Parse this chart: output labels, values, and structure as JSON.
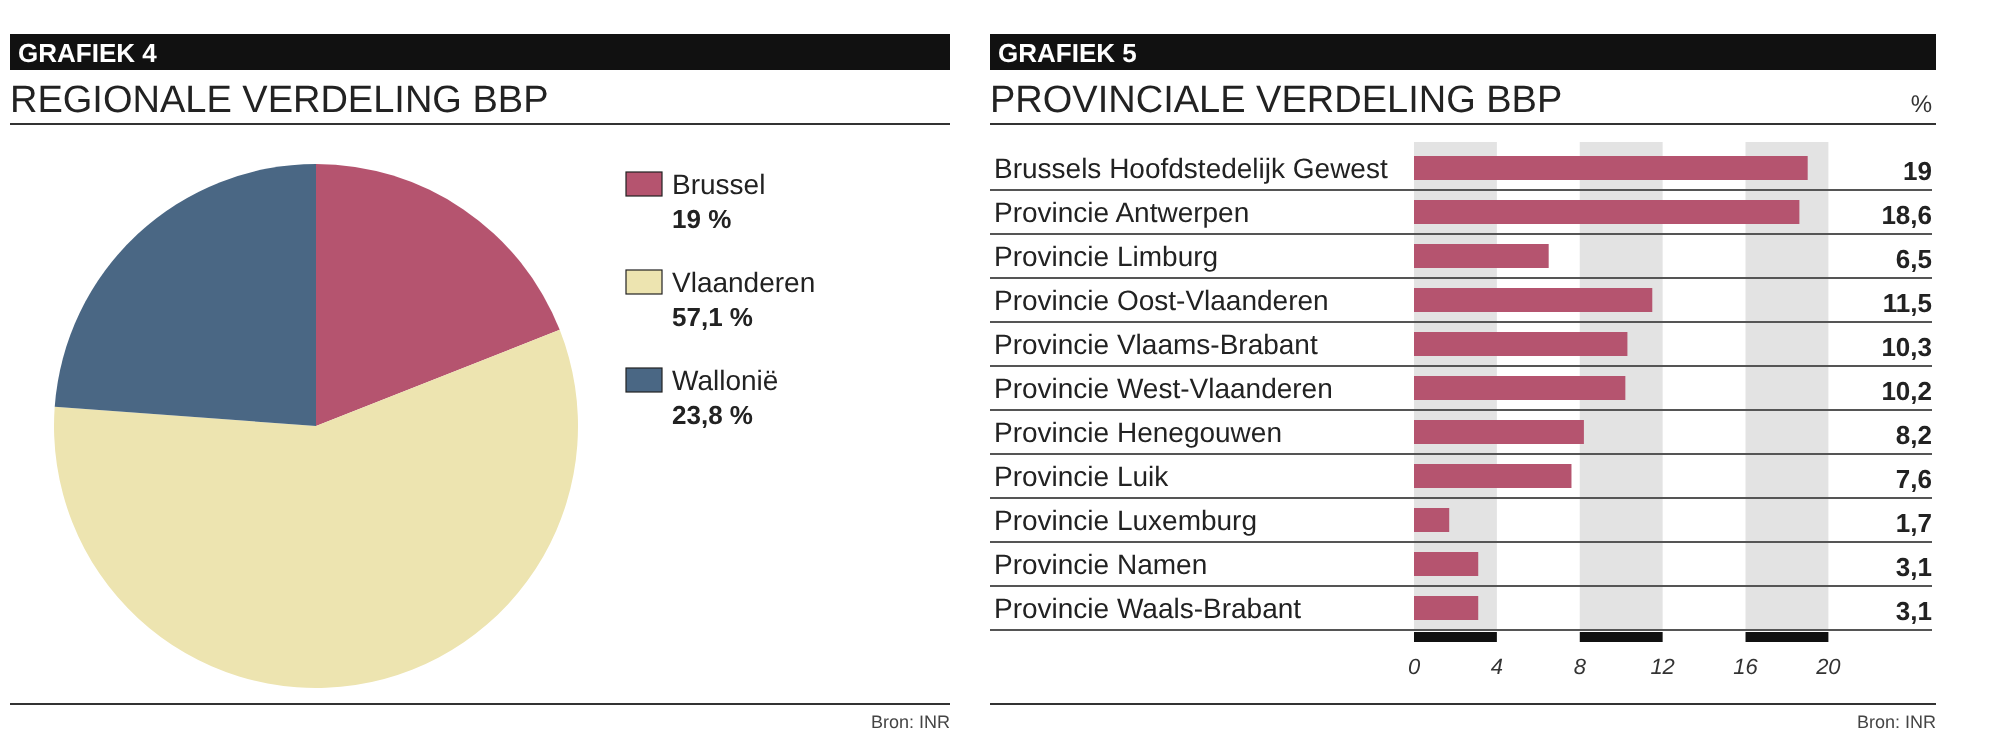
{
  "chart_data": [
    {
      "type": "pie",
      "title": "REGIONALE VERDELING BBP",
      "annotations": [
        "GRAFIEK 4",
        "Bron: INR"
      ],
      "categories": [
        "Brussel",
        "Vlaanderen",
        "Wallonië"
      ],
      "values": [
        19,
        57.1,
        23.8
      ],
      "value_labels": [
        "19 %",
        "57,1 %",
        "23,8 %"
      ],
      "colors": [
        "#b5546f",
        "#ede4b0",
        "#4a6784"
      ],
      "legend": "right"
    },
    {
      "type": "bar",
      "orientation": "horizontal",
      "title": "PROVINCIALE VERDELING BBP",
      "xlabel": "%",
      "annotations": [
        "GRAFIEK 5",
        "Bron: INR"
      ],
      "categories": [
        "Brussels Hoofdstedelijk Gewest",
        "Provincie Antwerpen",
        "Provincie Limburg",
        "Provincie Oost-Vlaanderen",
        "Provincie Vlaams-Brabant",
        "Provincie West-Vlaanderen",
        "Provincie Henegouwen",
        "Provincie Luik",
        "Provincie Luxemburg",
        "Provincie Namen",
        "Provincie Waals-Brabant"
      ],
      "values": [
        19,
        18.6,
        6.5,
        11.5,
        10.3,
        10.2,
        8.2,
        7.6,
        1.7,
        3.1,
        3.1
      ],
      "value_labels": [
        "19",
        "18,6",
        "6,5",
        "11,5",
        "10,3",
        "10,2",
        "8,2",
        "7,6",
        "1,7",
        "3,1",
        "3,1"
      ],
      "color": "#b5546f",
      "xlim": [
        0,
        25
      ],
      "xticks": [
        0,
        4,
        8,
        12,
        16,
        20
      ],
      "bands": [
        {
          "axis": "x",
          "from": 0,
          "to": 4,
          "color": "#e3e3e3"
        },
        {
          "axis": "x",
          "from": 8,
          "to": 12,
          "color": "#e3e3e3"
        },
        {
          "axis": "x",
          "from": 16,
          "to": 20,
          "color": "#e3e3e3"
        }
      ]
    }
  ]
}
